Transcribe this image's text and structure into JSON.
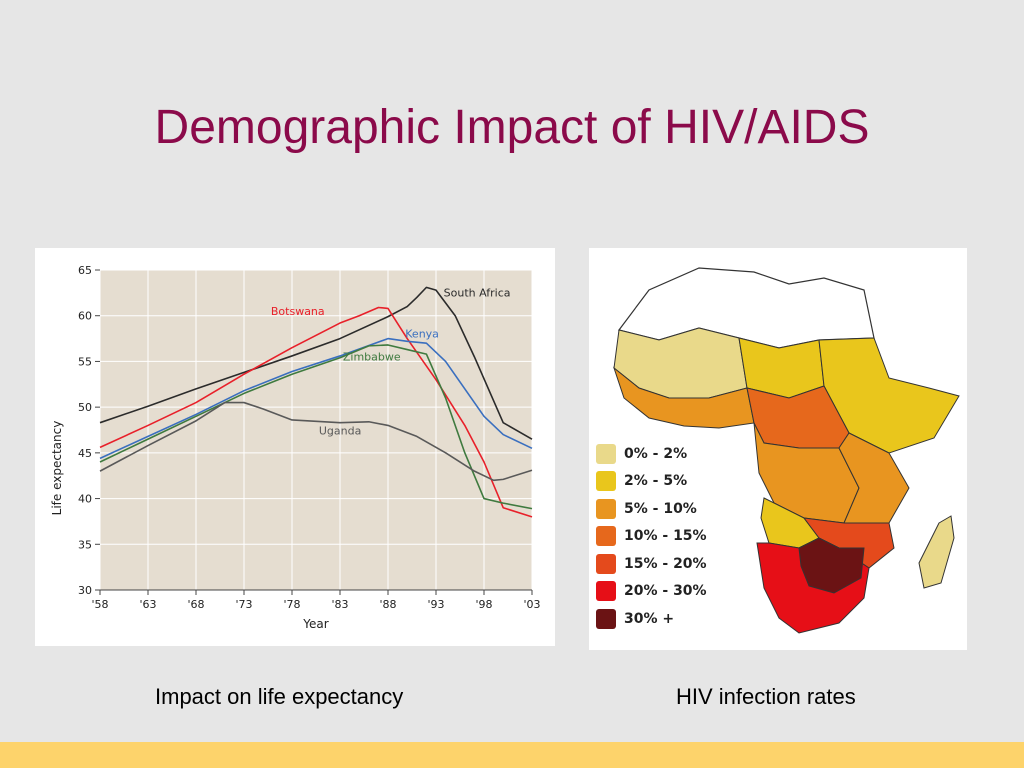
{
  "slide": {
    "title": "Demographic Impact of HIV/AIDS",
    "caption_left": "Impact on life expectancy",
    "caption_right": "HIV infection rates",
    "footer_color": "#fdd36b"
  },
  "chart_data": {
    "type": "line",
    "xlabel": "Year",
    "ylabel": "Life expectancy",
    "x_ticks": [
      "'58",
      "'63",
      "'68",
      "'73",
      "'78",
      "'83",
      "'88",
      "'93",
      "'98",
      "'03"
    ],
    "x_tick_values": [
      1958,
      1963,
      1968,
      1973,
      1978,
      1983,
      1988,
      1993,
      1998,
      2003
    ],
    "y_ticks": [
      "30",
      "35",
      "40",
      "45",
      "50",
      "55",
      "60",
      "65"
    ],
    "xlim": [
      1958,
      2003
    ],
    "ylim": [
      30,
      65
    ],
    "grid": true,
    "background": "#e5ddd0",
    "series": [
      {
        "name": "South Africa",
        "color": "#2b2b2b",
        "points": [
          [
            1958,
            48.3
          ],
          [
            1963,
            50.1
          ],
          [
            1968,
            52.0
          ],
          [
            1973,
            53.8
          ],
          [
            1978,
            55.6
          ],
          [
            1983,
            57.5
          ],
          [
            1988,
            59.9
          ],
          [
            1990,
            61.0
          ],
          [
            1991,
            62.0
          ],
          [
            1992,
            63.1
          ],
          [
            1993,
            62.8
          ],
          [
            1995,
            60.0
          ],
          [
            1997,
            55.5
          ],
          [
            2000,
            48.3
          ],
          [
            2003,
            46.5
          ]
        ],
        "label_at": [
          1993.8,
          62.1
        ]
      },
      {
        "name": "Botswana",
        "color": "#e8202a",
        "points": [
          [
            1958,
            45.6
          ],
          [
            1963,
            48.0
          ],
          [
            1968,
            50.5
          ],
          [
            1973,
            53.6
          ],
          [
            1978,
            56.5
          ],
          [
            1983,
            59.2
          ],
          [
            1985,
            60.0
          ],
          [
            1987,
            60.9
          ],
          [
            1988,
            60.8
          ],
          [
            1990,
            57.5
          ],
          [
            1993,
            53.0
          ],
          [
            1996,
            48.0
          ],
          [
            1998,
            44.0
          ],
          [
            2000,
            39.0
          ],
          [
            2003,
            38.0
          ]
        ],
        "label_at": [
          1975.8,
          60.1
        ]
      },
      {
        "name": "Kenya",
        "color": "#3a6fbf",
        "points": [
          [
            1958,
            44.4
          ],
          [
            1963,
            46.8
          ],
          [
            1968,
            49.2
          ],
          [
            1973,
            51.8
          ],
          [
            1978,
            53.9
          ],
          [
            1983,
            55.6
          ],
          [
            1988,
            57.5
          ],
          [
            1990,
            57.2
          ],
          [
            1992,
            57.0
          ],
          [
            1994,
            55.0
          ],
          [
            1998,
            49.0
          ],
          [
            2000,
            47.0
          ],
          [
            2003,
            45.5
          ]
        ],
        "label_at": [
          1989.8,
          57.6
        ]
      },
      {
        "name": "Zimbabwe",
        "color": "#3f7a3f",
        "points": [
          [
            1958,
            44.0
          ],
          [
            1963,
            46.5
          ],
          [
            1968,
            49.0
          ],
          [
            1973,
            51.5
          ],
          [
            1978,
            53.6
          ],
          [
            1983,
            55.4
          ],
          [
            1986,
            56.7
          ],
          [
            1988,
            56.8
          ],
          [
            1990,
            56.3
          ],
          [
            1992,
            55.8
          ],
          [
            1994,
            51.0
          ],
          [
            1996,
            45.0
          ],
          [
            1998,
            40.0
          ],
          [
            2000,
            39.5
          ],
          [
            2003,
            38.9
          ]
        ],
        "label_at": [
          1983.3,
          55.1
        ]
      },
      {
        "name": "Uganda",
        "color": "#595959",
        "points": [
          [
            1958,
            43.0
          ],
          [
            1963,
            45.8
          ],
          [
            1968,
            48.5
          ],
          [
            1971,
            50.5
          ],
          [
            1973,
            50.5
          ],
          [
            1975,
            49.8
          ],
          [
            1978,
            48.6
          ],
          [
            1983,
            48.3
          ],
          [
            1986,
            48.4
          ],
          [
            1988,
            48.0
          ],
          [
            1991,
            46.8
          ],
          [
            1994,
            45.0
          ],
          [
            1997,
            43.0
          ],
          [
            1999,
            42.0
          ],
          [
            2000,
            42.1
          ],
          [
            2003,
            43.1
          ]
        ],
        "label_at": [
          1980.8,
          47.0
        ]
      }
    ]
  },
  "map": {
    "legend": [
      {
        "label": "0% - 2%",
        "color": "#e9d98a"
      },
      {
        "label": "2% - 5%",
        "color": "#e9c61c"
      },
      {
        "label": "5% - 10%",
        "color": "#e89520"
      },
      {
        "label": "10% - 15%",
        "color": "#e6681c"
      },
      {
        "label": "15% - 20%",
        "color": "#e44a1c"
      },
      {
        "label": "20% - 30%",
        "color": "#e60f17"
      },
      {
        "label": "30% +",
        "color": "#6b1314"
      }
    ]
  }
}
